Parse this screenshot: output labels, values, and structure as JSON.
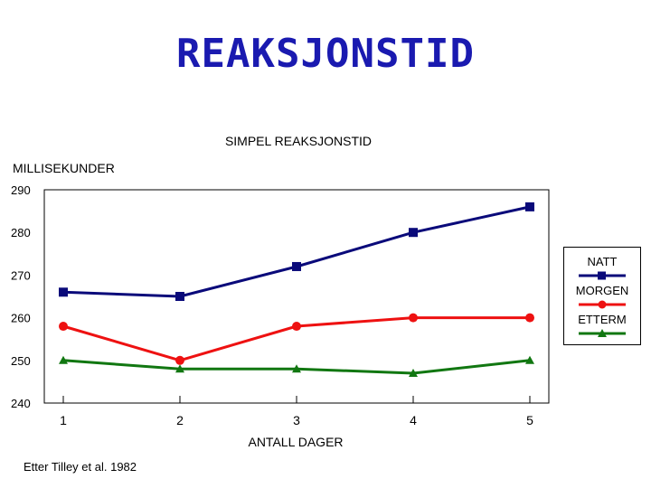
{
  "slide_title": "REAKSJONSTID",
  "source": "Etter Tilley et al. 1982",
  "colors": {
    "title": "#1a1ab0",
    "natt": "#0a0a7a",
    "morgen": "#ee1111",
    "etterm": "#117711"
  },
  "chart_data": {
    "type": "line",
    "title": "SIMPEL REAKSJONSTID",
    "ylabel": "MILLISEKUNDER",
    "xlabel": "ANTALL DAGER",
    "x": [
      1,
      2,
      3,
      4,
      5
    ],
    "ylim": [
      240,
      290
    ],
    "yticks": [
      240,
      250,
      260,
      270,
      280,
      290
    ],
    "grid": false,
    "legend_position": "right",
    "series": [
      {
        "name": "NATT",
        "marker": "square",
        "values": [
          266,
          265,
          272,
          280,
          286
        ]
      },
      {
        "name": "MORGEN",
        "marker": "circle",
        "values": [
          258,
          250,
          258,
          260,
          260
        ]
      },
      {
        "name": "ETTERM",
        "marker": "triangle",
        "values": [
          250,
          248,
          248,
          247,
          250
        ]
      }
    ]
  }
}
